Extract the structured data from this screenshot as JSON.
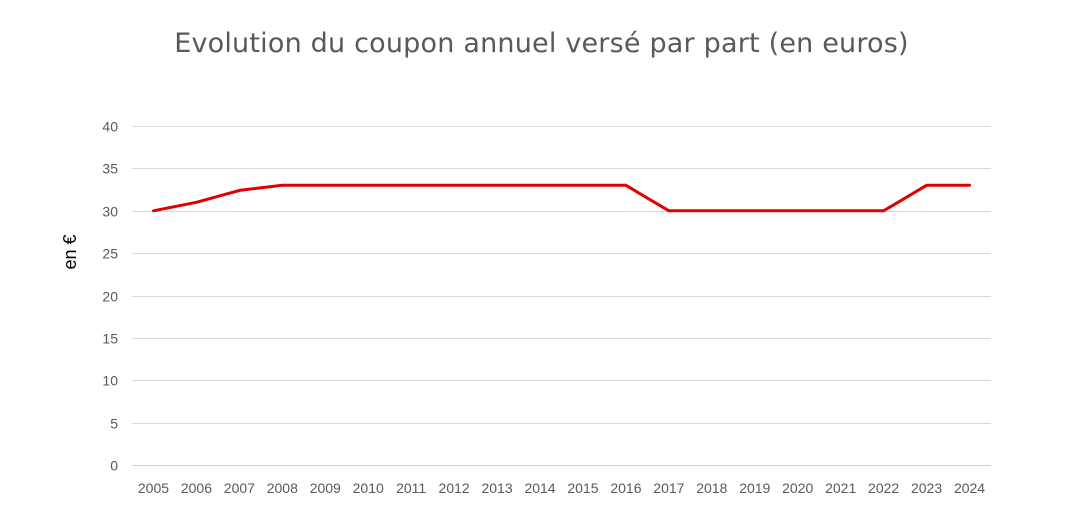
{
  "chart_data": {
    "type": "line",
    "title": "Evolution du coupon annuel versé par part (en euros)",
    "xlabel": "",
    "ylabel": "en €",
    "categories": [
      "2005",
      "2006",
      "2007",
      "2008",
      "2009",
      "2010",
      "2011",
      "2012",
      "2013",
      "2014",
      "2015",
      "2016",
      "2017",
      "2018",
      "2019",
      "2020",
      "2021",
      "2022",
      "2023",
      "2024"
    ],
    "series": [
      {
        "values": [
          30,
          31,
          32.4,
          33,
          33,
          33,
          33,
          33,
          33,
          33,
          33,
          33,
          30,
          30,
          30,
          30,
          30,
          30,
          33,
          33
        ],
        "color": "#e00000"
      }
    ],
    "ylim": [
      0,
      40
    ],
    "yticks": [
      0,
      5,
      10,
      15,
      20,
      25,
      30,
      35,
      40
    ],
    "grid": true,
    "legend": "none"
  }
}
